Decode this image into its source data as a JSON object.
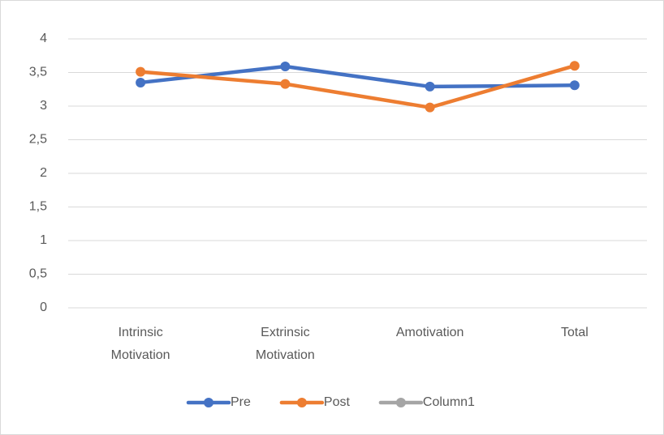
{
  "chart_data": {
    "type": "line",
    "categories": [
      "Intrinsic Motivation",
      "Extrinsic Motivation",
      "Amotivation",
      "Total"
    ],
    "series": [
      {
        "name": "Pre",
        "color": "#4472c4",
        "values": [
          3.35,
          3.59,
          3.29,
          3.31
        ]
      },
      {
        "name": "Post",
        "color": "#ed7d31",
        "values": [
          3.51,
          3.33,
          2.98,
          3.6
        ]
      },
      {
        "name": "Column1",
        "color": "#a5a5a5",
        "values": [
          null,
          null,
          null,
          null
        ]
      }
    ],
    "ylim": [
      0,
      4
    ],
    "yticks": [
      0,
      {
        "value": 0.5,
        "label": "0,5"
      },
      1,
      {
        "value": 1.5,
        "label": "1,5"
      },
      2,
      {
        "value": 2.5,
        "label": "2,5"
      },
      3,
      {
        "value": 3.5,
        "label": "3,5"
      },
      4
    ],
    "grid": true,
    "legend": "bottom"
  }
}
